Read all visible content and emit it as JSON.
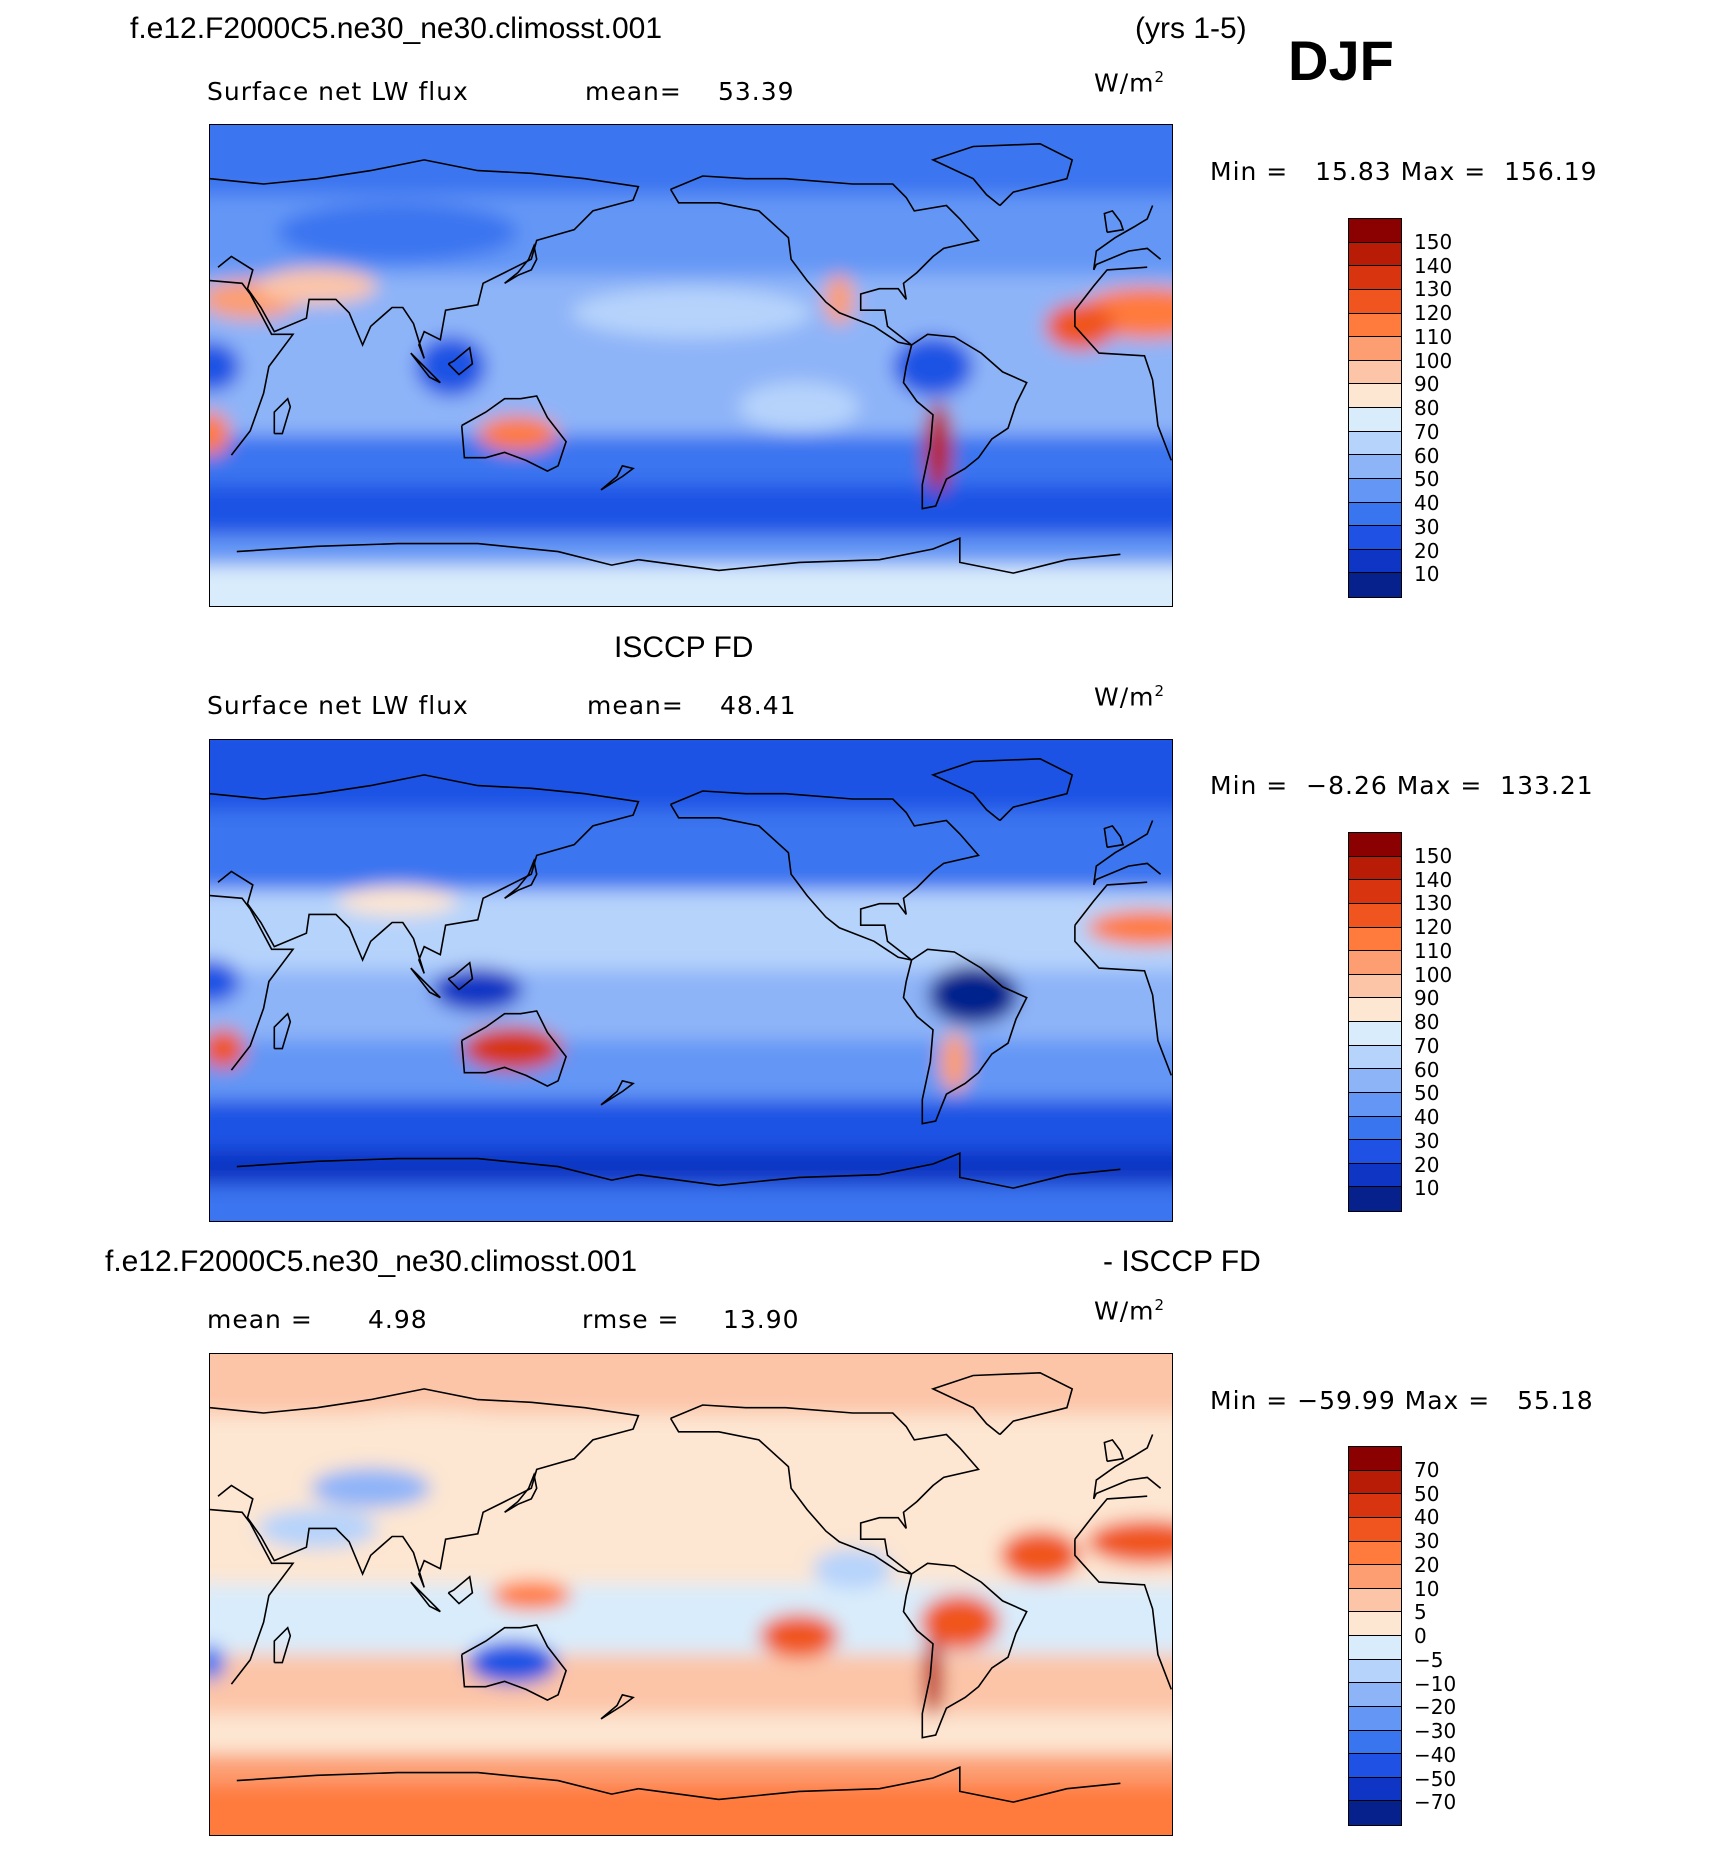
{
  "header": {
    "case_name": "f.e12.F2000C5.ne30_ne30.climosst.001",
    "years": "(yrs 1-5)",
    "season": "DJF"
  },
  "panels": [
    {
      "id": "model",
      "title": "",
      "variable": "Surface net LW flux",
      "stat1": "mean=",
      "stat1_value": "53.39",
      "stat2": "",
      "stat2_value": "",
      "unit_base": "W/m",
      "unit_exp": "2",
      "minmax": "Min =   15.83 Max =  156.19",
      "colorbar_levels": [
        "150",
        "140",
        "130",
        "120",
        "110",
        "100",
        "90",
        "80",
        "70",
        "60",
        "50",
        "40",
        "30",
        "20",
        "10"
      ],
      "colorbar_colors": [
        "#8b0000",
        "#b81c06",
        "#d7340f",
        "#f0551f",
        "#ff7a3d",
        "#fc9e72",
        "#fcc5a8",
        "#fde6d2",
        "#d9ecfb",
        "#b6d3fb",
        "#8eb4f8",
        "#6496f5",
        "#3a75f0",
        "#1f52e4",
        "#0e35c4",
        "#06208c"
      ],
      "field_mean": 53.39,
      "field_min": 15.83,
      "field_max": 156.19
    },
    {
      "id": "obs",
      "title": "ISCCP FD",
      "variable": "Surface net LW flux",
      "stat1": "mean=",
      "stat1_value": "48.41",
      "stat2": "",
      "stat2_value": "",
      "unit_base": "W/m",
      "unit_exp": "2",
      "minmax": "Min =  −8.26 Max =  133.21",
      "colorbar_levels": [
        "150",
        "140",
        "130",
        "120",
        "110",
        "100",
        "90",
        "80",
        "70",
        "60",
        "50",
        "40",
        "30",
        "20",
        "10"
      ],
      "colorbar_colors": [
        "#8b0000",
        "#b81c06",
        "#d7340f",
        "#f0551f",
        "#ff7a3d",
        "#fc9e72",
        "#fcc5a8",
        "#fde6d2",
        "#d9ecfb",
        "#b6d3fb",
        "#8eb4f8",
        "#6496f5",
        "#3a75f0",
        "#1f52e4",
        "#0e35c4",
        "#06208c"
      ],
      "field_mean": 48.41,
      "field_min": -8.26,
      "field_max": 133.21
    },
    {
      "id": "diff",
      "title_left": "f.e12.F2000C5.ne30_ne30.climosst.001",
      "title_right": "- ISCCP FD",
      "variable": "",
      "stat1": "mean =",
      "stat1_value": "4.98",
      "stat2": "rmse =",
      "stat2_value": "13.90",
      "unit_base": "W/m",
      "unit_exp": "2",
      "minmax": "Min = −59.99 Max =   55.18",
      "colorbar_levels": [
        "70",
        "50",
        "40",
        "30",
        "20",
        "10",
        "5",
        "0",
        "−5",
        "−10",
        "−20",
        "−30",
        "−40",
        "−50",
        "−70"
      ],
      "colorbar_colors": [
        "#8b0000",
        "#b81c06",
        "#d7340f",
        "#f0551f",
        "#ff7a3d",
        "#fc9e72",
        "#fcc5a8",
        "#fde6d2",
        "#d9ecfb",
        "#b6d3fb",
        "#8eb4f8",
        "#6496f5",
        "#3a75f0",
        "#1f52e4",
        "#0e35c4",
        "#06208c"
      ],
      "field_mean": 4.98,
      "field_min": -59.99,
      "field_max": 55.18
    }
  ]
}
